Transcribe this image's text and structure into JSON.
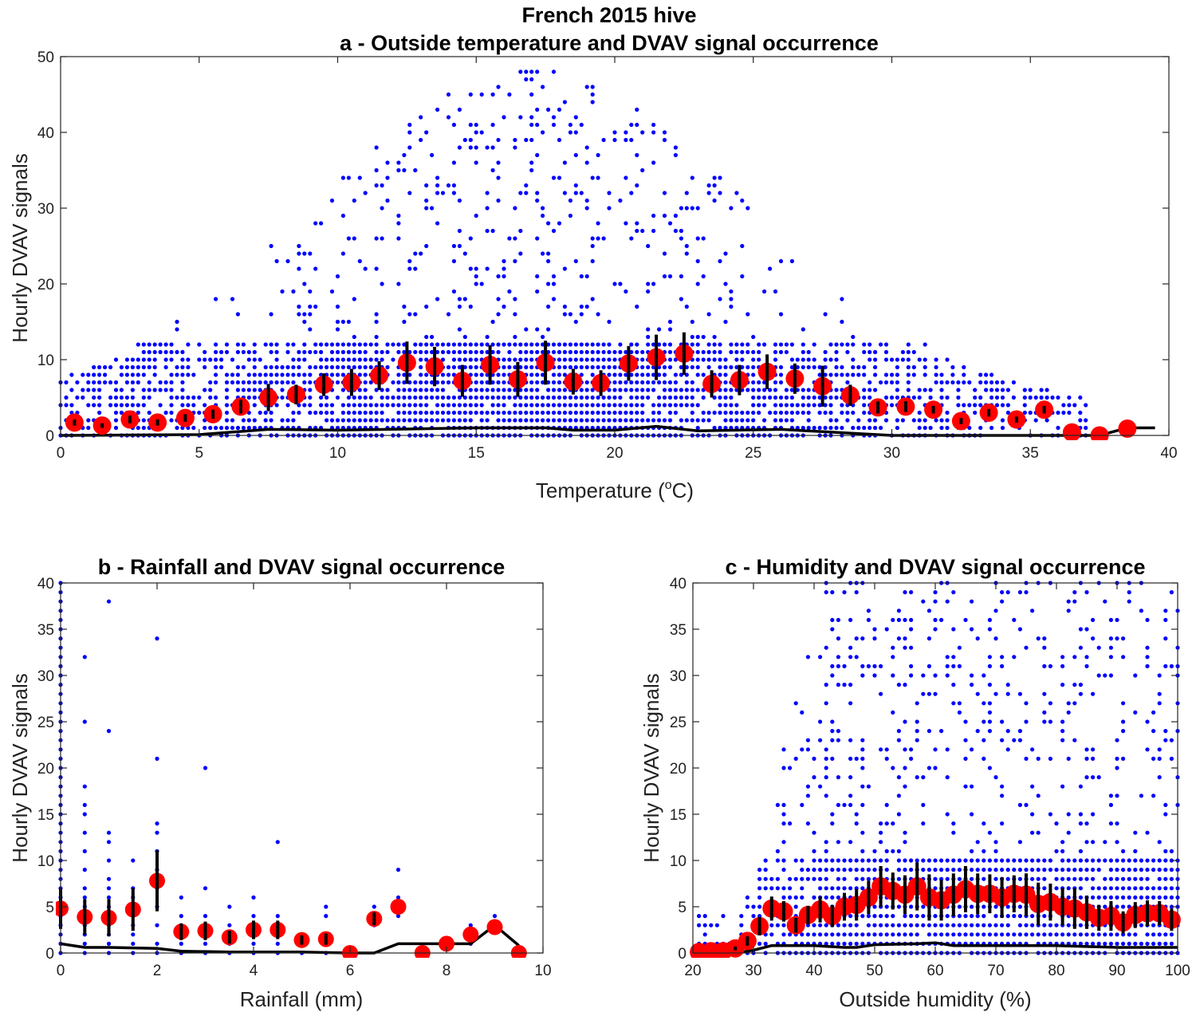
{
  "figure": {
    "suptitle": "French 2015 hive"
  },
  "colors": {
    "points": "#0000ff",
    "means": "#ff0000",
    "errorbars": "#000000",
    "median_line": "#000000",
    "axes": "#262626"
  },
  "chart_data": [
    {
      "id": "a",
      "type": "scatter",
      "title": "a - Outside temperature and DVAV signal occurrence",
      "xlabel_main": "Temperature (",
      "xlabel_sup": "o",
      "xlabel_tail": "C)",
      "ylabel": "Hourly DVAV signals",
      "xlim": [
        0,
        40
      ],
      "ylim": [
        0,
        50
      ],
      "xticks": [
        0,
        5,
        10,
        15,
        20,
        25,
        30,
        35,
        40
      ],
      "yticks": [
        0,
        10,
        20,
        30,
        40,
        50
      ],
      "grid": false,
      "scatter_range": {
        "x": [
          0,
          37
        ],
        "y_max": 50
      },
      "means": {
        "x": [
          0.5,
          1.5,
          2.5,
          3.5,
          4.5,
          5.5,
          6.5,
          7.5,
          8.5,
          9.5,
          10.5,
          11.5,
          12.5,
          13.5,
          14.5,
          15.5,
          16.5,
          17.5,
          18.5,
          19.5,
          20.5,
          21.5,
          22.5,
          23.5,
          24.5,
          25.5,
          26.5,
          27.5,
          28.5,
          29.5,
          30.5,
          31.5,
          32.5,
          33.5,
          34.5,
          35.5,
          36.5,
          37.5,
          38.5
        ],
        "y": [
          1.7,
          1.3,
          2.1,
          1.7,
          2.3,
          2.8,
          3.8,
          5.0,
          5.4,
          6.7,
          7.0,
          7.9,
          9.6,
          9.1,
          7.2,
          9.3,
          7.4,
          9.6,
          7.1,
          6.9,
          9.5,
          10.3,
          10.8,
          6.8,
          7.3,
          8.4,
          7.5,
          6.5,
          5.3,
          3.7,
          3.8,
          3.4,
          1.9,
          3.0,
          2.1,
          3.4,
          0.4,
          0.0,
          0.9
        ],
        "err": [
          0.4,
          0.3,
          0.5,
          0.4,
          0.5,
          0.6,
          0.9,
          1.8,
          1.3,
          1.5,
          1.8,
          1.9,
          2.8,
          2.6,
          2.1,
          2.6,
          2.3,
          2.9,
          1.7,
          1.7,
          2.3,
          3.0,
          2.8,
          1.8,
          2.0,
          2.3,
          2.0,
          2.7,
          1.4,
          0.8,
          0.7,
          0.5,
          0.4,
          0.5,
          0.4,
          0.5,
          0.0,
          0.0,
          0.0
        ]
      },
      "median": {
        "x": [
          0,
          5,
          7.5,
          10,
          15,
          17.5,
          18.5,
          20,
          21.5,
          23,
          26,
          29,
          30,
          35,
          36.5,
          37,
          37.5,
          38.5,
          39.5
        ],
        "y": [
          0,
          0.1,
          0.8,
          0.7,
          1.0,
          1.0,
          0.7,
          0.7,
          1.2,
          0.6,
          0.8,
          0.2,
          0,
          0,
          0,
          0,
          0,
          1,
          1
        ]
      }
    },
    {
      "id": "b",
      "type": "scatter",
      "title": "b - Rainfall and DVAV signal occurrence",
      "xlabel": "Rainfall (mm)",
      "ylabel": "Hourly DVAV signals",
      "xlim": [
        0,
        10
      ],
      "ylim": [
        0,
        40
      ],
      "xticks": [
        0,
        2,
        4,
        6,
        8,
        10
      ],
      "yticks": [
        0,
        5,
        10,
        15,
        20,
        25,
        30,
        35,
        40
      ],
      "grid": false,
      "points": [
        [
          0.5,
          32
        ],
        [
          0.5,
          25
        ],
        [
          0.5,
          18
        ],
        [
          0.5,
          16
        ],
        [
          0.5,
          15
        ],
        [
          0.5,
          13
        ],
        [
          0.5,
          11
        ],
        [
          0.5,
          9
        ],
        [
          0.5,
          7
        ],
        [
          0.5,
          6
        ],
        [
          0.5,
          5
        ],
        [
          0.5,
          4
        ],
        [
          0.5,
          3
        ],
        [
          0.5,
          2
        ],
        [
          0.5,
          1
        ],
        [
          0.5,
          0
        ],
        [
          1,
          38
        ],
        [
          1,
          24
        ],
        [
          1,
          13
        ],
        [
          1,
          12
        ],
        [
          1,
          10
        ],
        [
          1,
          8
        ],
        [
          1,
          7
        ],
        [
          1,
          6
        ],
        [
          1,
          5
        ],
        [
          1,
          4
        ],
        [
          1,
          3
        ],
        [
          1,
          2
        ],
        [
          1,
          1
        ],
        [
          1,
          0
        ],
        [
          1.5,
          10
        ],
        [
          1.5,
          7
        ],
        [
          1.5,
          6
        ],
        [
          1.5,
          5
        ],
        [
          1.5,
          4
        ],
        [
          1.5,
          3
        ],
        [
          1.5,
          2
        ],
        [
          1.5,
          1
        ],
        [
          1.5,
          0
        ],
        [
          2,
          34
        ],
        [
          2,
          21
        ],
        [
          2,
          14
        ],
        [
          2,
          13
        ],
        [
          2,
          11
        ],
        [
          2,
          9
        ],
        [
          2,
          8
        ],
        [
          2,
          7
        ],
        [
          2,
          5
        ],
        [
          2,
          3
        ],
        [
          2,
          1
        ],
        [
          2,
          0
        ],
        [
          2.5,
          6
        ],
        [
          2.5,
          4
        ],
        [
          2.5,
          3
        ],
        [
          2.5,
          2
        ],
        [
          2.5,
          1
        ],
        [
          2.5,
          0
        ],
        [
          3,
          20
        ],
        [
          3,
          7
        ],
        [
          3,
          4
        ],
        [
          3,
          3
        ],
        [
          3,
          2
        ],
        [
          3,
          1
        ],
        [
          3,
          0
        ],
        [
          3.5,
          5
        ],
        [
          3.5,
          3
        ],
        [
          3.5,
          2
        ],
        [
          3.5,
          1
        ],
        [
          3.5,
          0
        ],
        [
          4,
          6
        ],
        [
          4,
          4
        ],
        [
          4,
          3
        ],
        [
          4,
          2
        ],
        [
          4,
          1
        ],
        [
          4,
          0
        ],
        [
          4.5,
          12
        ],
        [
          4.5,
          4
        ],
        [
          4.5,
          3
        ],
        [
          4.5,
          2
        ],
        [
          4.5,
          1
        ],
        [
          4.5,
          0
        ],
        [
          5,
          2
        ],
        [
          5,
          1
        ],
        [
          5,
          0
        ],
        [
          5.5,
          5
        ],
        [
          5.5,
          4
        ],
        [
          5.5,
          2
        ],
        [
          5.5,
          1
        ],
        [
          5.5,
          0
        ],
        [
          6.5,
          5
        ],
        [
          6.5,
          3
        ],
        [
          7,
          9
        ],
        [
          7,
          6
        ],
        [
          7,
          4
        ],
        [
          8.5,
          3
        ],
        [
          8.5,
          1
        ],
        [
          9,
          4
        ]
      ],
      "points_x0_range": [
        0,
        40
      ],
      "means": {
        "x": [
          0,
          0.5,
          1,
          1.5,
          2,
          2.5,
          3,
          3.5,
          4,
          4.5,
          5,
          5.5,
          6,
          6.5,
          7,
          7.5,
          8,
          8.5,
          9,
          9.5
        ],
        "y": [
          4.8,
          3.9,
          3.8,
          4.7,
          7.8,
          2.3,
          2.4,
          1.7,
          2.5,
          2.5,
          1.4,
          1.5,
          0,
          3.7,
          5.0,
          0,
          1.0,
          2.0,
          2.8,
          0
        ],
        "err": [
          2.2,
          1.9,
          2.0,
          2.3,
          3.3,
          0.9,
          1.0,
          0.7,
          1.0,
          1.0,
          0.5,
          0.6,
          0,
          0.7,
          0,
          0,
          0,
          0,
          0,
          0
        ]
      },
      "median": {
        "x": [
          0,
          0.5,
          1,
          2,
          2.5,
          3.5,
          4,
          5,
          6,
          6.5,
          7,
          8,
          8.5,
          9,
          9.5
        ],
        "y": [
          1.0,
          0.6,
          0.6,
          0.5,
          0.2,
          0.1,
          0.1,
          0.1,
          0,
          0,
          1.0,
          1.0,
          1.0,
          3.0,
          0.8
        ]
      }
    },
    {
      "id": "c",
      "type": "scatter",
      "title": "c - Humidity and DVAV signal occurrence",
      "xlabel": "Outside humidity (%)",
      "ylabel": "Hourly DVAV signals",
      "xlim": [
        20,
        100
      ],
      "ylim": [
        0,
        40
      ],
      "xticks": [
        20,
        30,
        40,
        50,
        60,
        70,
        80,
        90,
        100
      ],
      "yticks": [
        0,
        5,
        10,
        15,
        20,
        25,
        30,
        35,
        40
      ],
      "grid": false,
      "scatter_range": {
        "x": [
          21,
          100
        ],
        "y_max": 40
      },
      "means": {
        "x": [
          21,
          23,
          25,
          27,
          29,
          31,
          33,
          35,
          37,
          39,
          41,
          43,
          45,
          47,
          49,
          51,
          53,
          55,
          57,
          59,
          61,
          63,
          65,
          67,
          69,
          71,
          73,
          75,
          77,
          79,
          81,
          83,
          85,
          87,
          89,
          91,
          93,
          95,
          97,
          99
        ],
        "y": [
          0.1,
          0.2,
          0.2,
          0.5,
          1.3,
          2.9,
          4.8,
          4.5,
          3.0,
          4.1,
          4.7,
          4.0,
          5.0,
          5.2,
          6.0,
          7.2,
          6.7,
          6.3,
          7.2,
          6.0,
          5.7,
          6.3,
          6.9,
          6.4,
          6.4,
          6.0,
          6.4,
          6.3,
          5.3,
          5.5,
          5.0,
          4.8,
          4.4,
          3.8,
          4.0,
          3.3,
          4.1,
          4.3,
          4.3,
          3.6
        ],
        "err": [
          0,
          0,
          0,
          0.2,
          0.5,
          1.0,
          1.3,
          1.1,
          0.8,
          1.0,
          1.4,
          1.2,
          1.5,
          1.7,
          1.8,
          2.2,
          2.0,
          2.1,
          2.6,
          2.5,
          2.2,
          2.3,
          2.5,
          2.2,
          2.1,
          2.2,
          2.0,
          2.3,
          2.3,
          2.0,
          2.0,
          2.2,
          1.8,
          1.4,
          1.6,
          1.2,
          1.4,
          1.4,
          1.3,
          1.2
        ]
      },
      "median": {
        "x": [
          21,
          27,
          30,
          33,
          40,
          45,
          47,
          50,
          57,
          60,
          63,
          70,
          75,
          80,
          85,
          90,
          100
        ],
        "y": [
          0,
          0,
          0.3,
          0.8,
          0.8,
          0.6,
          0.6,
          0.9,
          1.0,
          1.1,
          0.8,
          0.8,
          0.8,
          0.8,
          0.7,
          0.6,
          0.6
        ]
      }
    }
  ]
}
